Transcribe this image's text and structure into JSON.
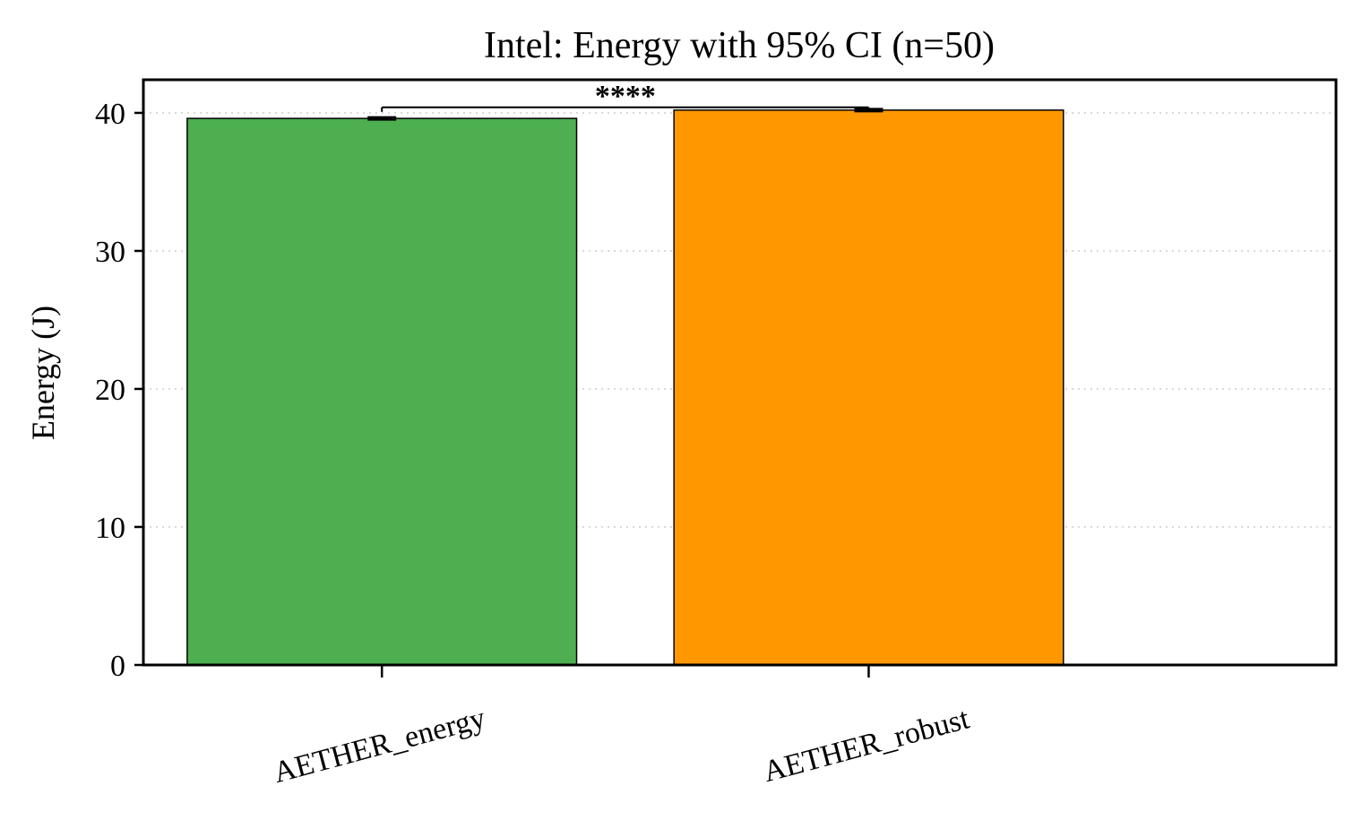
{
  "chart_data": {
    "type": "bar",
    "title": "Intel: Energy with 95% CI (n=50)",
    "ylabel": "Energy (J)",
    "xlabel": "",
    "categories": [
      "AETHER_energy",
      "AETHER_robust"
    ],
    "values": [
      39.6,
      40.2
    ],
    "ci_half_width": [
      0.1,
      0.1
    ],
    "colors": [
      "#4daf4f",
      "#ff9800"
    ],
    "ylim": [
      0,
      42.4
    ],
    "yticks": [
      0,
      10,
      20,
      30,
      40
    ],
    "grid": "y-dotted",
    "significance": {
      "label": "****",
      "between": [
        0,
        1
      ],
      "y": 40.4
    }
  }
}
